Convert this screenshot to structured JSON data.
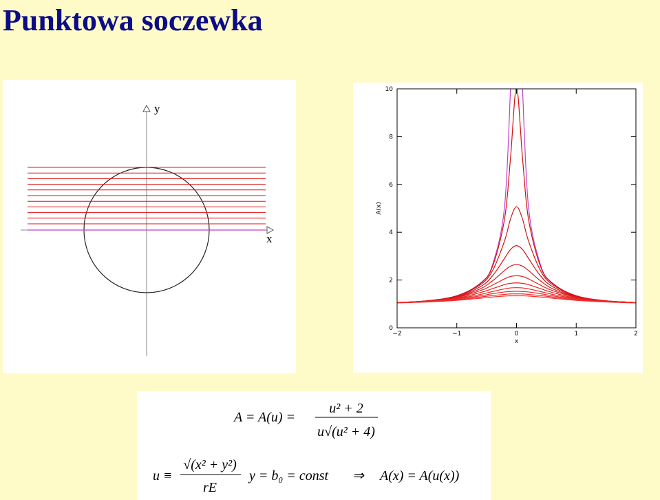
{
  "title": "Punktowa soczewka",
  "diagram": {
    "y_label": "y",
    "x_label": "x"
  },
  "chart_data": {
    "type": "line",
    "x": [
      -2,
      -1.5,
      -1,
      -0.6,
      -0.4,
      -0.2,
      -0.1,
      0,
      0.1,
      0.2,
      0.4,
      0.6,
      1,
      1.5,
      2
    ],
    "xlim": [
      -2,
      2
    ],
    "ylim": [
      0,
      10
    ],
    "xticks": [
      {
        "value": -2,
        "label": "−2"
      },
      {
        "value": -1,
        "label": "−1"
      },
      0,
      1,
      2
    ],
    "yticks": [
      0,
      2,
      4,
      6,
      8,
      10
    ],
    "xlabel": "x",
    "ylabel": "A(x)",
    "series": [
      {
        "color": "#c23ec8",
        "values": [
          1.06,
          1.13,
          1.34,
          1.88,
          2.65,
          5.07,
          10.04,
          null,
          10.04,
          5.07,
          2.65,
          1.88,
          1.34,
          1.13,
          1.06
        ]
      },
      {
        "color": "#d01010",
        "values": [
          1.06,
          1.13,
          1.34,
          1.86,
          2.58,
          4.56,
          7.12,
          10.04,
          7.12,
          4.56,
          2.58,
          1.86,
          1.34,
          1.13,
          1.06
        ]
      },
      {
        "color": "#c81818",
        "values": [
          1.06,
          1.13,
          1.33,
          1.81,
          2.4,
          3.64,
          4.56,
          5.07,
          4.56,
          3.64,
          2.4,
          1.81,
          1.33,
          1.13,
          1.06
        ]
      },
      {
        "color": "#d41414",
        "values": [
          1.06,
          1.13,
          1.31,
          1.73,
          2.18,
          2.91,
          3.28,
          3.44,
          3.28,
          2.91,
          2.18,
          1.73,
          1.31,
          1.13,
          1.06
        ]
      },
      {
        "color": "#dc1a1a",
        "values": [
          1.06,
          1.12,
          1.29,
          1.64,
          1.97,
          2.4,
          2.58,
          2.65,
          2.58,
          2.4,
          1.97,
          1.64,
          1.29,
          1.12,
          1.06
        ]
      },
      {
        "color": "#e01c1c",
        "values": [
          1.06,
          1.12,
          1.27,
          1.56,
          1.79,
          2.05,
          2.15,
          2.18,
          2.15,
          2.05,
          1.79,
          1.56,
          1.27,
          1.12,
          1.06
        ]
      },
      {
        "color": "#e42020",
        "values": [
          1.05,
          1.11,
          1.24,
          1.48,
          1.64,
          1.81,
          1.86,
          1.88,
          1.86,
          1.81,
          1.64,
          1.48,
          1.24,
          1.11,
          1.05
        ]
      },
      {
        "color": "#e82424",
        "values": [
          1.05,
          1.1,
          1.22,
          1.4,
          1.52,
          1.63,
          1.67,
          1.68,
          1.67,
          1.63,
          1.52,
          1.4,
          1.22,
          1.1,
          1.05
        ]
      },
      {
        "color": "#ec2828",
        "values": [
          1.05,
          1.1,
          1.2,
          1.34,
          1.43,
          1.5,
          1.52,
          1.53,
          1.52,
          1.5,
          1.43,
          1.34,
          1.2,
          1.1,
          1.05
        ]
      },
      {
        "color": "#f02c2c",
        "values": [
          1.05,
          1.09,
          1.17,
          1.29,
          1.35,
          1.4,
          1.42,
          1.42,
          1.42,
          1.4,
          1.35,
          1.29,
          1.17,
          1.09,
          1.05
        ]
      },
      {
        "color": "#f43030",
        "values": [
          1.04,
          1.08,
          1.15,
          1.24,
          1.29,
          1.33,
          1.34,
          1.34,
          1.34,
          1.33,
          1.29,
          1.24,
          1.15,
          1.08,
          1.04
        ]
      }
    ]
  },
  "formula": {
    "line1": {
      "left": "A = A(u) =",
      "numerator": "u² + 2",
      "denominator": "u√(u² + 4)"
    },
    "line2": {
      "left": "u ≡",
      "numerator": "√(x² + y²)",
      "denominator": "rE",
      "condition": "y = b₀ = const",
      "arrow": "⇒",
      "result": "A(x) = A(u(x))"
    }
  }
}
